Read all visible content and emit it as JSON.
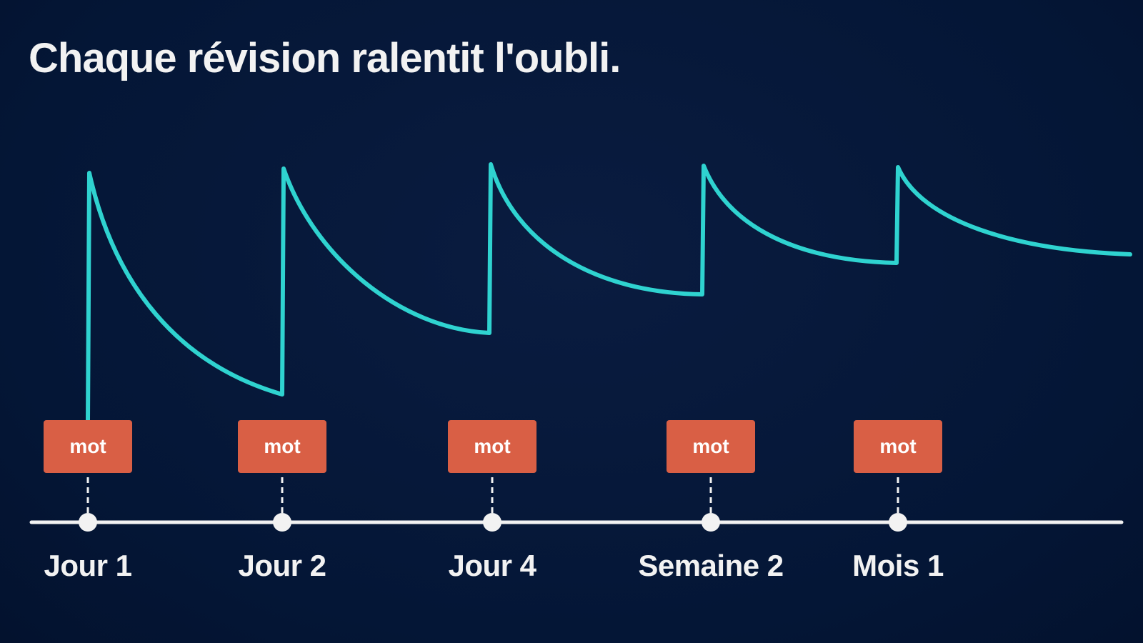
{
  "title": "Chaque révision ralentit l'oubli.",
  "colors": {
    "background": "#041636",
    "curve": "#2fd3d0",
    "box": "#d95f45",
    "timeline": "#f2f2f2"
  },
  "reviews": [
    {
      "label": "Jour 1",
      "word": "mot"
    },
    {
      "label": "Jour 2",
      "word": "mot"
    },
    {
      "label": "Jour 4",
      "word": "mot"
    },
    {
      "label": "Semaine 2",
      "word": "mot"
    },
    {
      "label": "Mois 1",
      "word": "mot"
    }
  ]
}
